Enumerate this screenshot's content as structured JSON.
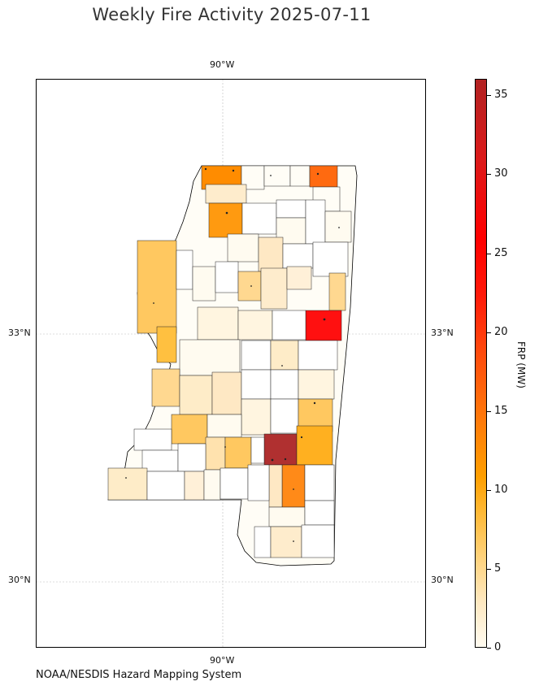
{
  "title": "Weekly Fire Activity 2025-07-11",
  "credit": "NOAA/NESDIS Hazard Mapping System",
  "axes": {
    "lon_label_top": "90°W",
    "lon_label_bottom": "90°W",
    "lat_labels": [
      "33°N",
      "30°N"
    ]
  },
  "colorbar": {
    "label": "FRP (MW)",
    "ticks": [
      "0",
      "5",
      "10",
      "15",
      "20",
      "25",
      "30",
      "35"
    ],
    "range": [
      0,
      36
    ],
    "colors": {
      "low": "#fffbf0",
      "mid": "#ffa500",
      "high": "#ff0000",
      "max": "#b22222"
    }
  },
  "map": {
    "region": "Mississippi counties",
    "gridlines": {
      "longitude": "90°W",
      "latitudes": [
        "33°N",
        "30°N"
      ]
    },
    "top_county_frp": {
      "northeast_county": 15,
      "north_county_1": 12,
      "north_county_2": 12,
      "delta_west": 7,
      "east_central": 22,
      "southeast": 35,
      "south_central": 14,
      "southeast_2": 10
    }
  }
}
